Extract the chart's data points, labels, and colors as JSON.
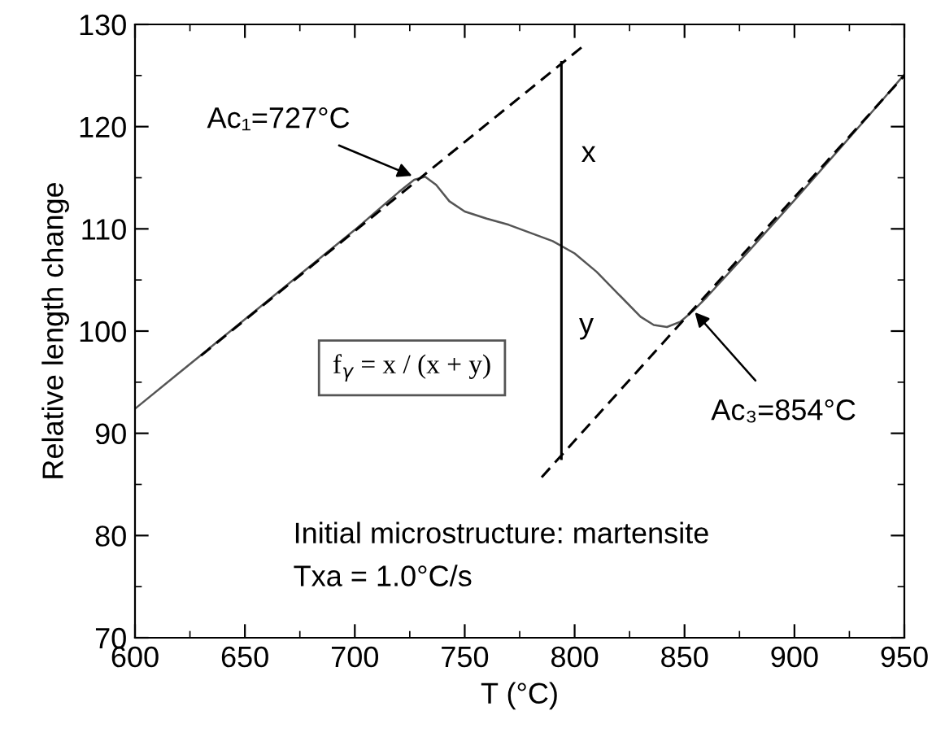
{
  "chart_data": {
    "type": "line",
    "xlabel": "T (°C)",
    "ylabel": "Relative length change",
    "xlim": [
      600,
      950
    ],
    "ylim": [
      70,
      130
    ],
    "xticks": [
      600,
      650,
      700,
      750,
      800,
      850,
      900,
      950
    ],
    "yticks": [
      70,
      80,
      90,
      100,
      110,
      120,
      130
    ],
    "grid": false,
    "legend": false,
    "marker": "none",
    "series": [
      {
        "color": "#555555",
        "line_style": "solid",
        "x": [
          600,
          620,
          640,
          660,
          680,
          700,
          720,
          727,
          732,
          737,
          743,
          750,
          760,
          770,
          780,
          790,
          800,
          810,
          820,
          830,
          836,
          842,
          848,
          854,
          860,
          880,
          900,
          920,
          940,
          950
        ],
        "values": [
          92.4,
          95.9,
          99.4,
          102.9,
          106.4,
          109.9,
          113.6,
          114.8,
          115.1,
          114.3,
          112.7,
          111.7,
          111.0,
          110.4,
          109.6,
          108.8,
          107.6,
          105.8,
          103.6,
          101.4,
          100.6,
          100.4,
          100.9,
          102.0,
          103.3,
          108.0,
          112.8,
          117.7,
          122.6,
          125.1
        ]
      },
      {
        "color": "#000000",
        "line_style": "dashed",
        "x": [
          630,
          804
        ],
        "values": [
          97.6,
          127.9
        ]
      },
      {
        "color": "#000000",
        "line_style": "dashed",
        "x": [
          785,
          950
        ],
        "values": [
          85.7,
          125.0
        ]
      },
      {
        "color": "#000000",
        "line_style": "solid",
        "x": [
          794,
          794
        ],
        "values": [
          87.5,
          126.3
        ]
      }
    ],
    "annotations": [
      {
        "text": "Ac₁=727°C",
        "x": 727,
        "y": 115.1
      },
      {
        "text": "Ac₃=854°C",
        "x": 854,
        "y": 102.0
      },
      "x",
      "y",
      "f$_{γ}$ = x / (x + y)",
      "Initial microstructure: martensite",
      "Txa = 1.0°C/s"
    ]
  }
}
